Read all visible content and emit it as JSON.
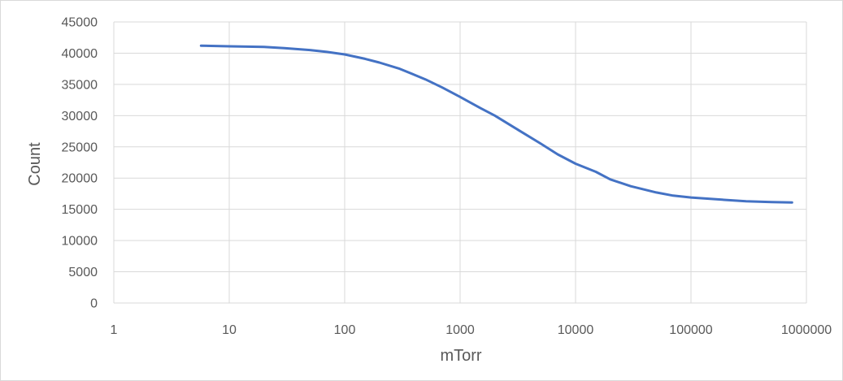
{
  "chart_data": {
    "type": "line",
    "title": "",
    "xlabel": "mTorr",
    "ylabel": "Count",
    "x_scale": "log",
    "xlim": [
      1,
      1000000
    ],
    "ylim": [
      0,
      45000
    ],
    "grid": true,
    "legend": "none",
    "x_ticks": [
      "1",
      "10",
      "100",
      "1000",
      "10000",
      "100000",
      "1000000"
    ],
    "y_ticks": [
      "0",
      "5000",
      "10000",
      "15000",
      "20000",
      "25000",
      "30000",
      "35000",
      "40000",
      "45000"
    ],
    "series": [
      {
        "color": "#4472c4",
        "x": [
          5.7,
          10,
          20,
          30,
          50,
          70,
          100,
          150,
          200,
          300,
          500,
          700,
          1000,
          1500,
          2000,
          3000,
          5000,
          7000,
          10000,
          15000,
          20000,
          30000,
          50000,
          70000,
          100000,
          200000,
          300000,
          500000,
          750000
        ],
        "y": [
          41200,
          41100,
          41000,
          40800,
          40500,
          40200,
          39800,
          39100,
          38500,
          37500,
          35800,
          34500,
          33000,
          31200,
          30000,
          28000,
          25500,
          23800,
          22300,
          21000,
          19800,
          18700,
          17700,
          17200,
          16900,
          16500,
          16300,
          16150,
          16100
        ]
      }
    ]
  }
}
